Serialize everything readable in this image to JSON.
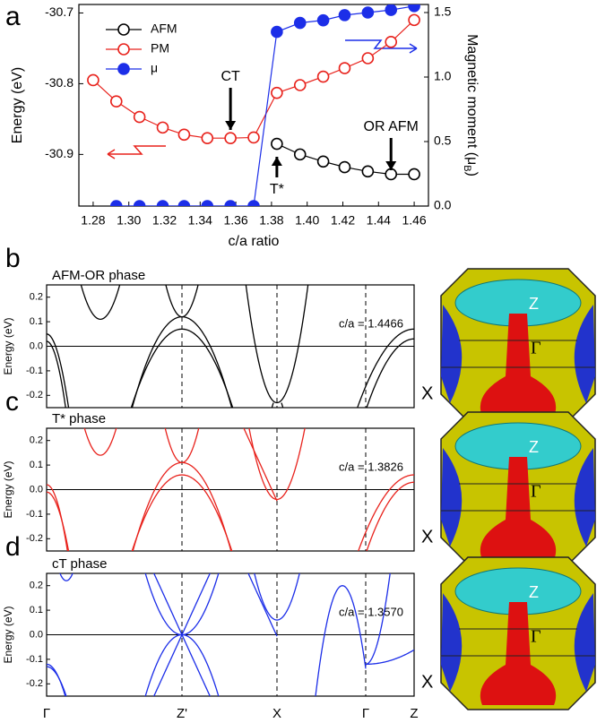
{
  "chart_data": [
    {
      "type": "line",
      "panel_label": "a",
      "xlabel": "c/a ratio",
      "ylabel": "Energy (eV)",
      "y2label": "Magnetic moment (μ",
      "y2label_sub": "B",
      "y2label_end": ")",
      "x": [
        1.28,
        1.293,
        1.306,
        1.319,
        1.331,
        1.344,
        1.357,
        1.37,
        1.383,
        1.396,
        1.409,
        1.421,
        1.434,
        1.447,
        1.46
      ],
      "xlim": [
        1.272,
        1.468
      ],
      "xticks": [
        {
          "value": 1.28,
          "label": "1.28"
        },
        {
          "value": 1.3,
          "label": "1.30"
        },
        {
          "value": 1.32,
          "label": "1.32"
        },
        {
          "value": 1.34,
          "label": "1.34"
        },
        {
          "value": 1.36,
          "label": "1.36"
        },
        {
          "value": 1.38,
          "label": "1.38"
        },
        {
          "value": 1.4,
          "label": "1.40"
        },
        {
          "value": 1.42,
          "label": "1.42"
        },
        {
          "value": 1.44,
          "label": "1.44"
        },
        {
          "value": 1.46,
          "label": "1.46"
        }
      ],
      "ylim": [
        -30.973,
        -30.688
      ],
      "yticks": [
        -30.7,
        -30.8,
        -30.9
      ],
      "y2lim": [
        0,
        1.5625
      ],
      "y2ticks": [
        {
          "value": 0,
          "label": "0.0"
        },
        {
          "value": 0.5,
          "label": "0.5"
        },
        {
          "value": 1,
          "label": "1.0"
        },
        {
          "value": 1.5,
          "label": "1.5"
        }
      ],
      "legend": "upper left",
      "series": [
        {
          "name": "AFM",
          "color": "#000000",
          "marker": "open",
          "values": [
            null,
            null,
            null,
            null,
            null,
            null,
            null,
            null,
            -30.885,
            -30.9,
            -30.91,
            -30.918,
            -30.924,
            -30.928,
            -30.928
          ]
        },
        {
          "name": "PM",
          "color": "#e8221c",
          "marker": "open",
          "values": [
            -30.795,
            -30.825,
            -30.847,
            -30.862,
            -30.872,
            -30.877,
            -30.877,
            -30.876,
            -30.813,
            -30.802,
            -30.79,
            -30.778,
            -30.764,
            -30.741,
            -30.71
          ]
        },
        {
          "name": "μ",
          "color": "#1c2ee8",
          "marker": "filled",
          "axis": "y2",
          "values": [
            null,
            0,
            0,
            0,
            0,
            0,
            0,
            0,
            1.35,
            1.42,
            1.44,
            1.48,
            1.5,
            1.52,
            1.55
          ]
        }
      ],
      "annotations": [
        "CT",
        "T*",
        "OR AFM"
      ]
    },
    {
      "type": "bands",
      "panel_label": "b",
      "title": "AFM-OR phase",
      "annotation": "c/a = 1.4466",
      "ylabel": "Energy (eV)",
      "color": "#000000",
      "ylim": [
        -0.25,
        0.25
      ],
      "yticks": [
        0.2,
        0.1,
        {
          "value": 0,
          "label": "0.0"
        },
        -0.1,
        -0.2
      ],
      "fs_labels": [
        "Z",
        "Γ",
        "X"
      ]
    },
    {
      "type": "bands",
      "panel_label": "c",
      "title": "T* phase",
      "annotation": "c/a = 1.3826",
      "ylabel": "Energy (eV)",
      "color": "#e8221c",
      "ylim": [
        -0.25,
        0.25
      ],
      "yticks": [
        0.2,
        0.1,
        {
          "value": 0,
          "label": "0.0"
        },
        -0.1,
        -0.2
      ],
      "fs_labels": [
        "Z",
        "Γ",
        "X"
      ]
    },
    {
      "type": "bands",
      "panel_label": "d",
      "title": "cT phase",
      "annotation": "c/a = 1.3570",
      "ylabel": "Energy (eV)",
      "color": "#1c2ee8",
      "ylim": [
        -0.25,
        0.25
      ],
      "yticks": [
        0.2,
        0.1,
        {
          "value": 0,
          "label": "0.0"
        },
        -0.1,
        -0.2
      ],
      "fs_labels": [
        "Z",
        "Γ",
        "X"
      ],
      "kpoints": [
        "Γ",
        "Z'",
        "X",
        "Γ",
        "Z"
      ]
    }
  ]
}
